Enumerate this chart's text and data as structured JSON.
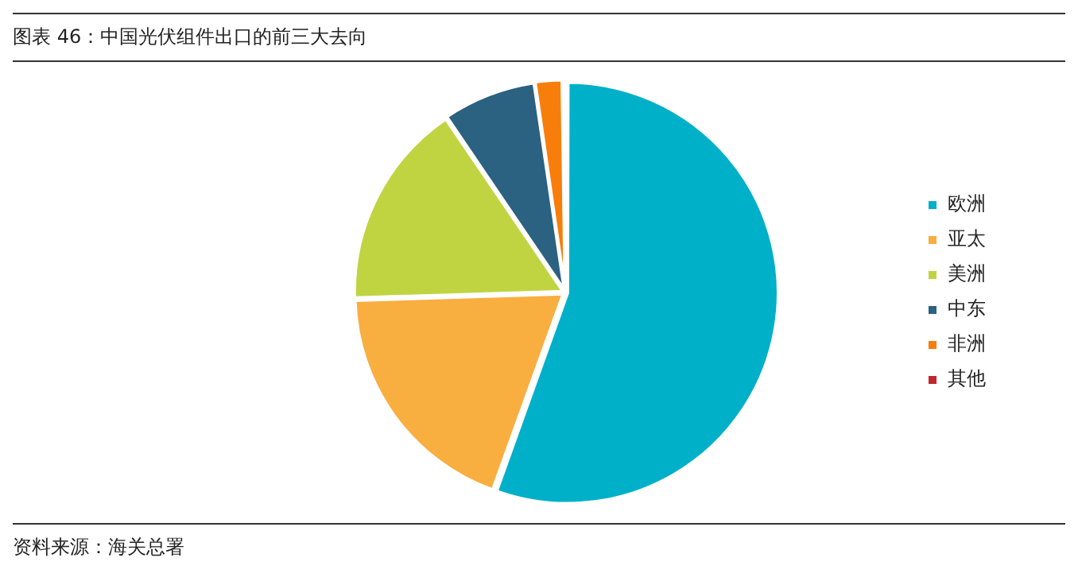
{
  "chart_data": {
    "type": "pie",
    "title": "图表 46：中国光伏组件出口的前三大去向",
    "categories": [
      "欧洲",
      "亚太",
      "美洲",
      "中东",
      "非洲",
      "其他"
    ],
    "values": [
      55.5,
      19,
      16,
      7.2,
      2.1,
      0.2
    ],
    "colors": [
      "#00b0c8",
      "#f9ae40",
      "#c0d441",
      "#2b6181",
      "#f77e0a",
      "#c0282d"
    ],
    "legend": "right",
    "annotations": [
      "资料来源：海关总署"
    ]
  }
}
